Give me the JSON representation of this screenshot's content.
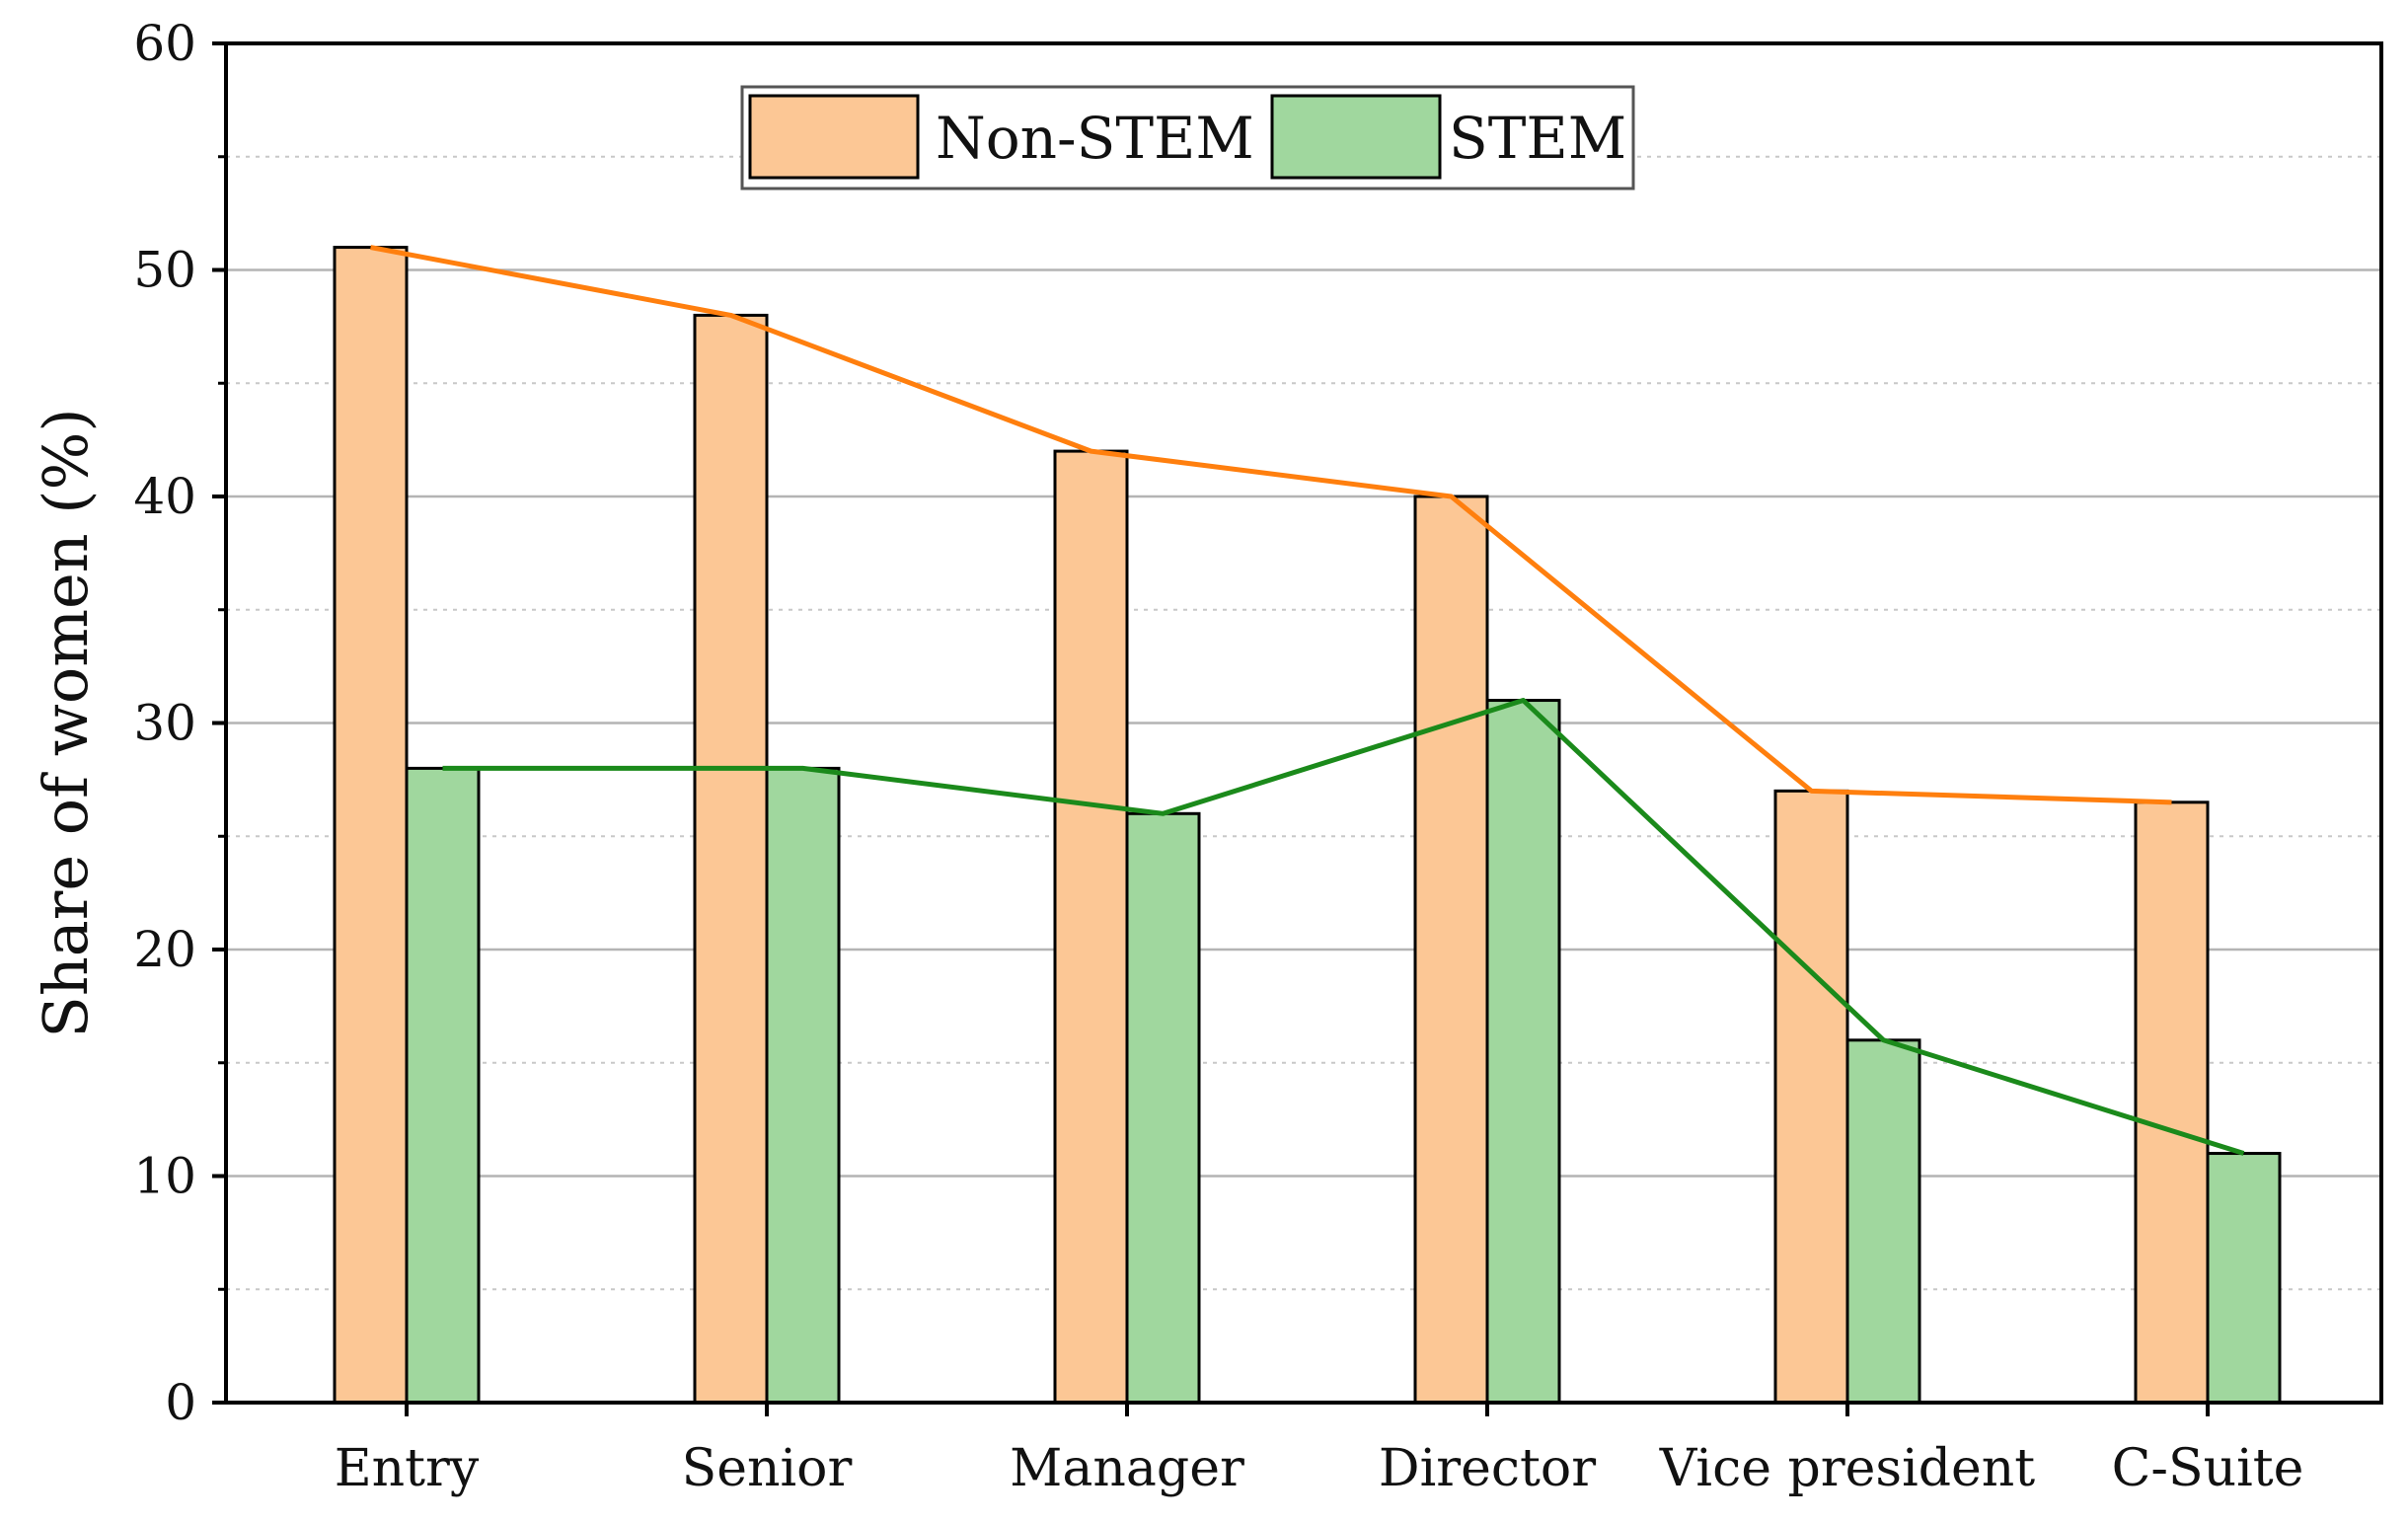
{
  "chart_data": {
    "type": "bar",
    "title": "",
    "xlabel": "",
    "ylabel": "Share of women (%)",
    "ylim": [
      0,
      60
    ],
    "yticks": [
      0,
      10,
      20,
      30,
      40,
      50,
      60
    ],
    "grid": "horizontal",
    "legend_position": "top-center",
    "categories": [
      "Entry",
      "Senior",
      "Manager",
      "Director",
      "Vice president",
      "C-Suite"
    ],
    "series": [
      {
        "name": "Non-STEM",
        "values": [
          51,
          48,
          42,
          40,
          27,
          26.5
        ],
        "bar_color": "#FCC795",
        "line_color": "#FF7F0E",
        "trend_line": true
      },
      {
        "name": "STEM",
        "values": [
          28,
          28,
          26,
          31,
          16,
          11
        ],
        "bar_color": "#A0D79E",
        "line_color": "#1B8A1B",
        "trend_line": true
      }
    ]
  }
}
